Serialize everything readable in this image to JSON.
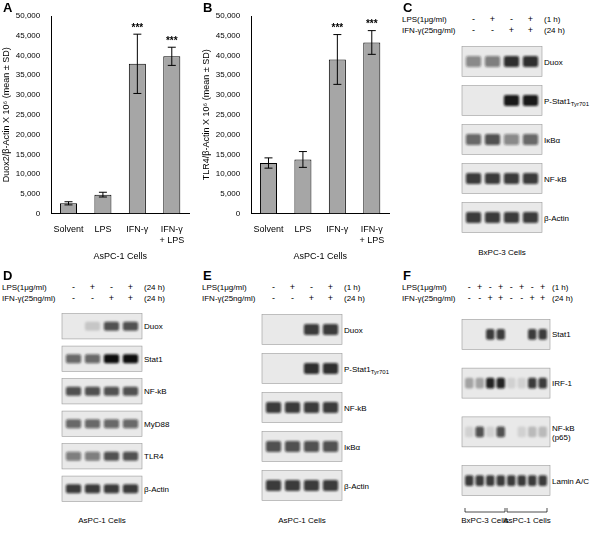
{
  "chart_data": [
    {
      "panel": "A",
      "type": "bar",
      "categories": [
        "Solvent",
        "LPS",
        "IFN-γ",
        "IFN-γ + LPS"
      ],
      "values": [
        2600,
        4800,
        37900,
        39800
      ],
      "errors": [
        400,
        600,
        7500,
        2300
      ],
      "significance": [
        null,
        null,
        "***",
        "***"
      ],
      "color": "#a6a6a6",
      "y_label": "Duox2/β-Actin X 10⁶ (mean ± SD)",
      "x_label": "AsPC-1 Cells",
      "ylim": [
        0,
        50000
      ],
      "yticks": [
        0,
        {
          "value": 5000,
          "label": "5,000"
        },
        {
          "value": 10000,
          "label": "10,000"
        },
        {
          "value": 15000,
          "label": "15,000"
        },
        {
          "value": 20000,
          "label": "20,000"
        },
        {
          "value": 25000,
          "label": "25,000"
        },
        {
          "value": 30000,
          "label": "30,000"
        },
        {
          "value": 35000,
          "label": "35,000"
        },
        {
          "value": 40000,
          "label": "40,000"
        },
        {
          "value": 45000,
          "label": "45,000"
        },
        {
          "value": 50000,
          "label": "50,000"
        }
      ],
      "grid": false
    },
    {
      "panel": "B",
      "type": "bar",
      "categories": [
        "Solvent",
        "LPS",
        "IFN-γ",
        "IFN-γ + LPS"
      ],
      "values": [
        12800,
        13700,
        39000,
        43300
      ],
      "errors": [
        1300,
        2000,
        6300,
        3000
      ],
      "significance": [
        null,
        null,
        "***",
        "***"
      ],
      "color": "#a6a6a6",
      "y_label": "TLR4/β-Actin X 10⁶ (mean ± SD)",
      "x_label": "AsPC-1 Cells",
      "ylim": [
        0,
        50000
      ],
      "yticks": [
        0,
        {
          "value": 5000,
          "label": "5,000"
        },
        {
          "value": 10000,
          "label": "10,000"
        },
        {
          "value": 15000,
          "label": "15,000"
        },
        {
          "value": 20000,
          "label": "20,000"
        },
        {
          "value": 25000,
          "label": "25,000"
        },
        {
          "value": 30000,
          "label": "30,000"
        },
        {
          "value": 35000,
          "label": "35,000"
        },
        {
          "value": 40000,
          "label": "40,000"
        },
        {
          "value": 45000,
          "label": "45,000"
        },
        {
          "value": 50000,
          "label": "50,000"
        }
      ],
      "grid": false
    }
  ],
  "blots": [
    {
      "panel": "C",
      "treatments": [
        {
          "label": "LPS(1μg/ml)",
          "signs": [
            "-",
            "+",
            "-",
            "+"
          ],
          "time": "(1 h)"
        },
        {
          "label": "IFN-γ(25ng/ml)",
          "signs": [
            "-",
            "-",
            "+",
            "+"
          ],
          "time": "(24 h)"
        }
      ],
      "bands": [
        {
          "label": "Duox",
          "intensity": [
            0.45,
            0.5,
            0.85,
            0.85
          ]
        },
        {
          "label": "P-Stat1",
          "subscript": "Tyr701",
          "intensity": [
            0,
            0,
            0.95,
            0.95
          ]
        },
        {
          "label": "IκBα",
          "intensity": [
            0.6,
            0.7,
            0.45,
            0.6
          ]
        },
        {
          "label": "NF-kB",
          "intensity": [
            0.8,
            0.8,
            0.8,
            0.8
          ]
        },
        {
          "label": "β-Actin",
          "intensity": [
            0.8,
            0.8,
            0.8,
            0.8
          ]
        }
      ],
      "cells": [
        {
          "label": "BxPC-3 Cells",
          "lane_count": 4
        }
      ]
    },
    {
      "panel": "D",
      "treatments": [
        {
          "label": "LPS(1μg/ml)",
          "signs": [
            "-",
            "+",
            "-",
            "+"
          ],
          "time": "(24 h)"
        },
        {
          "label": "IFN-γ(25ng/ml)",
          "signs": [
            "-",
            "-",
            "+",
            "+"
          ],
          "time": "(24 h)"
        }
      ],
      "bands": [
        {
          "label": "Duox",
          "intensity": [
            0,
            0.15,
            0.7,
            0.7
          ]
        },
        {
          "label": "Stat1",
          "intensity": [
            0.6,
            0.6,
            1,
            1
          ]
        },
        {
          "label": "NF-kB",
          "intensity": [
            0.7,
            0.7,
            0.7,
            0.7
          ]
        },
        {
          "label": "MyD88",
          "intensity": [
            0.6,
            0.6,
            0.6,
            0.6
          ]
        },
        {
          "label": "TLR4",
          "intensity": [
            0.5,
            0.5,
            0.7,
            0.7
          ]
        },
        {
          "label": "β-Actin",
          "intensity": [
            0.8,
            0.8,
            0.8,
            0.8
          ]
        }
      ],
      "cells": [
        {
          "label": "AsPC-1 Cells",
          "lane_count": 4
        }
      ]
    },
    {
      "panel": "E",
      "treatments": [
        {
          "label": "LPS(1μg/ml)",
          "signs": [
            "-",
            "+",
            "-",
            "+"
          ],
          "time": "(1 h)"
        },
        {
          "label": "IFN-γ(25ng/ml)",
          "signs": [
            "-",
            "-",
            "+",
            "+"
          ],
          "time": "(24 h)"
        }
      ],
      "bands": [
        {
          "label": "Duox",
          "intensity": [
            0,
            0,
            0.8,
            0.8
          ]
        },
        {
          "label": "P-Stat1",
          "subscript": "Tyr701",
          "intensity": [
            0,
            0,
            0.85,
            0.85
          ]
        },
        {
          "label": "NF-kB",
          "intensity": [
            0.8,
            0.8,
            0.8,
            0.8
          ]
        },
        {
          "label": "IκBα",
          "intensity": [
            0.7,
            0.7,
            0.7,
            0.7
          ]
        },
        {
          "label": "β-Actin",
          "intensity": [
            0.8,
            0.8,
            0.8,
            0.8
          ]
        }
      ],
      "cells": [
        {
          "label": "AsPC-1 Cells",
          "lane_count": 4
        }
      ]
    },
    {
      "panel": "F",
      "treatments": [
        {
          "label": "LPS(1μg/ml)",
          "signs": [
            "-",
            "+",
            "-",
            "+",
            "-",
            "+",
            "-",
            "+"
          ],
          "time": "(1 h)"
        },
        {
          "label": "IFN-γ(25ng/ml)",
          "signs": [
            "-",
            "-",
            "+",
            "+",
            "-",
            "-",
            "+",
            "+"
          ],
          "time": "(24 h)"
        }
      ],
      "bands": [
        {
          "label": "Stat1",
          "intensity": [
            0,
            0,
            0.8,
            0.8,
            0,
            0,
            0.8,
            0.8
          ]
        },
        {
          "label": "IRF-1",
          "intensity": [
            0.3,
            0.3,
            0.9,
            0.9,
            0.1,
            0.1,
            0.8,
            0.8
          ]
        },
        {
          "label": "NF-kB (p65)",
          "intensity": [
            0.1,
            0.7,
            0.1,
            0.7,
            0,
            0.1,
            0.2,
            0.2
          ]
        },
        {
          "label": "Lamin A/C",
          "intensity": [
            0.8,
            0.8,
            0.8,
            0.8,
            0.8,
            0.8,
            0.8,
            0.8
          ]
        }
      ],
      "cells": [
        {
          "label": "BxPC-3 Cells",
          "lane_count": 4
        },
        {
          "label": "AsPC-1 Cells",
          "lane_count": 4
        }
      ]
    }
  ]
}
